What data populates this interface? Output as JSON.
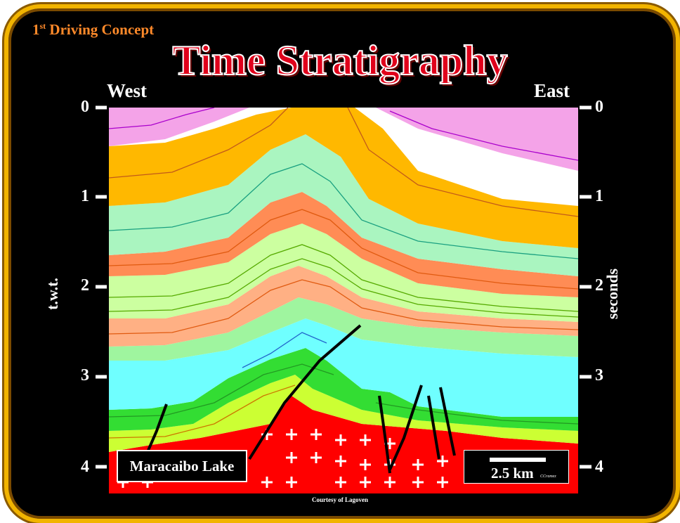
{
  "header": {
    "concept_prefix": "1",
    "concept_sup": "st",
    "concept_text": " Driving Concept",
    "title": "Time Stratigraphy"
  },
  "orientation": {
    "west": "West",
    "east": "East"
  },
  "axis": {
    "left_title": "t.w.t.",
    "right_title": "seconds",
    "ticks": [
      "0",
      "1",
      "2",
      "3",
      "4"
    ]
  },
  "labels": {
    "lake": "Maracaibo Lake",
    "scale": "2.5 km",
    "author": "CCramez",
    "credit": "Courtesy of Lagoven"
  },
  "colors": {
    "frame_gold": "#f2b400",
    "title_red": "#e0001b",
    "basement_red": "#ff0000",
    "pink": "#f4a3e8",
    "orange": "#ffb800",
    "mint": "#aaf5c0",
    "salmon": "#ff8c55",
    "light_green": "#ccffa0",
    "peach": "#ffb084",
    "cyan": "#6fffff",
    "green": "#33dd33",
    "yellow": "#ccff33"
  }
}
